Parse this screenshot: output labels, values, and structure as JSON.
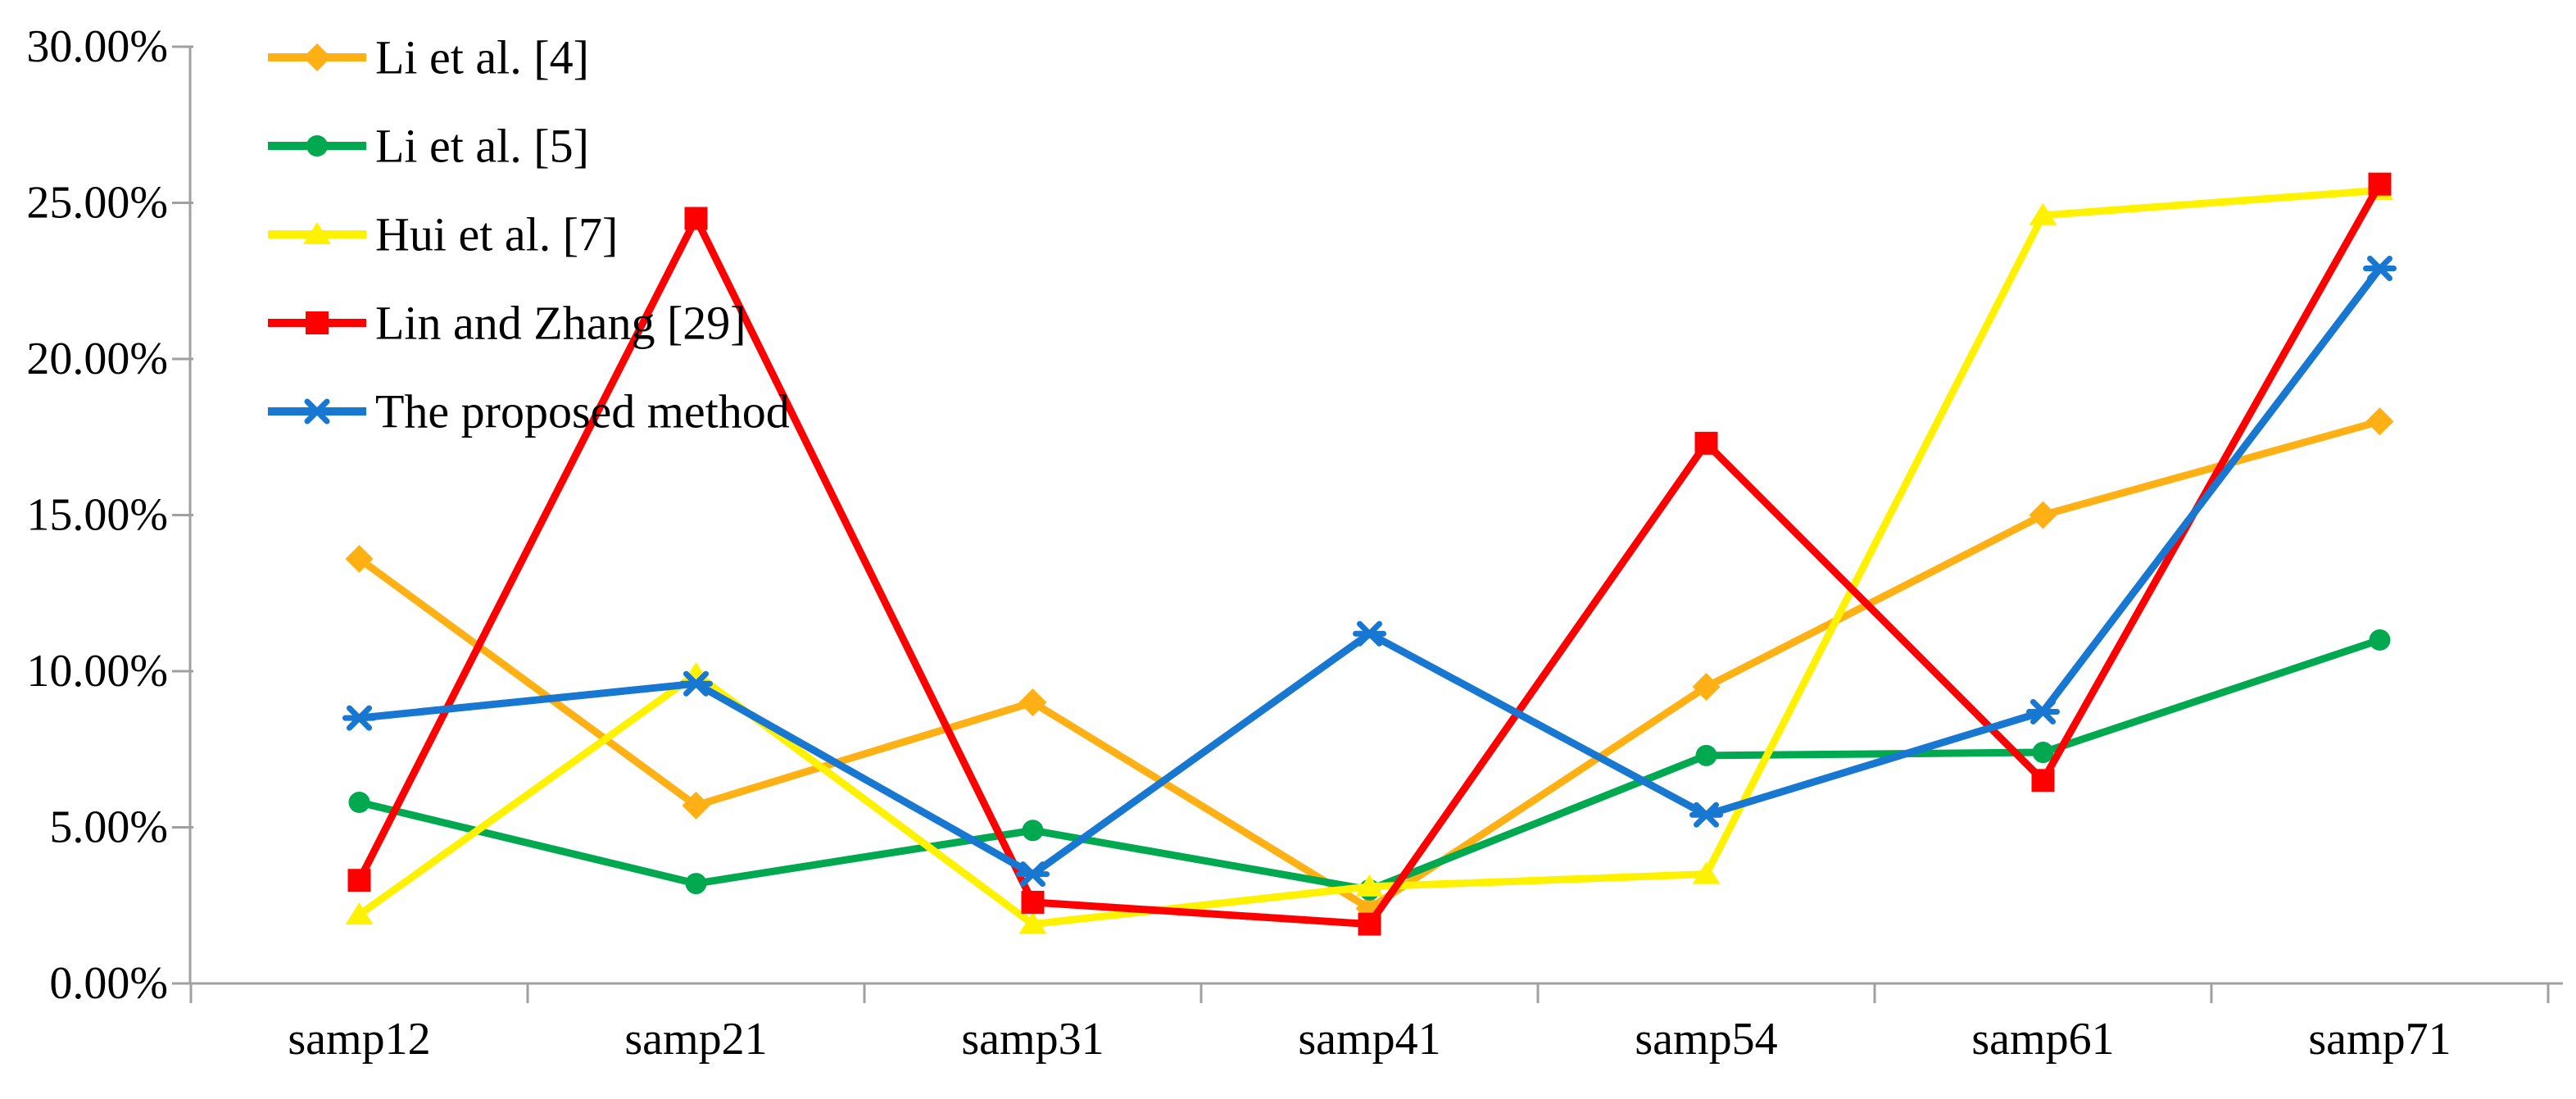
{
  "chart_data": {
    "type": "line",
    "title": "",
    "xlabel": "",
    "ylabel": "",
    "grid": false,
    "legend_position": "top-left",
    "background_color": "#FFFFFF",
    "axis_color": "#A0A0A0",
    "text_color": "#000000",
    "categories": [
      "samp12",
      "samp21",
      "samp31",
      "samp41",
      "samp54",
      "samp61",
      "samp71"
    ],
    "y_axis": {
      "min": 0,
      "max": 30,
      "step": 5,
      "tick_labels": [
        "0.00%",
        "5.00%",
        "10.00%",
        "15.00%",
        "20.00%",
        "25.00%",
        "30.00%"
      ]
    },
    "series": [
      {
        "name": "Li et al. [4]",
        "color": "#FFB014",
        "marker": "diamond",
        "values": [
          13.6,
          5.7,
          9.0,
          2.4,
          9.5,
          15.0,
          18.0
        ]
      },
      {
        "name": "Li et al. [5]",
        "color": "#00A94F",
        "marker": "circle",
        "values": [
          5.8,
          3.2,
          4.9,
          3.0,
          7.3,
          7.4,
          11.0
        ]
      },
      {
        "name": "Hui et al. [7]",
        "color": "#FFF200",
        "marker": "triangle",
        "values": [
          2.2,
          9.9,
          1.9,
          3.1,
          3.5,
          24.6,
          25.4
        ]
      },
      {
        "name": "Lin and Zhang [29]",
        "color": "#FF0000",
        "marker": "square",
        "values": [
          3.3,
          24.5,
          2.6,
          1.9,
          17.3,
          6.5,
          25.6
        ]
      },
      {
        "name": "The proposed method",
        "color": "#1777D1",
        "marker": "asterisk",
        "values": [
          8.5,
          9.6,
          3.5,
          11.2,
          5.4,
          8.7,
          22.9
        ]
      }
    ]
  }
}
